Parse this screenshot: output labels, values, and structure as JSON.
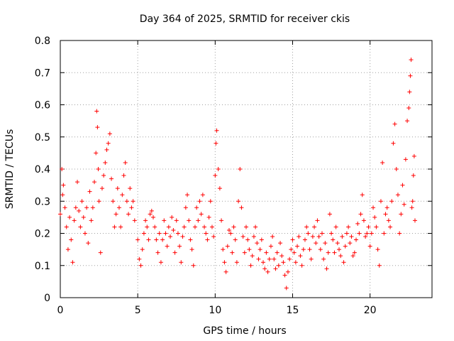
{
  "chart_data": {
    "type": "scatter",
    "title": "Day 364 of 2025, SRMTID for receiver ckis",
    "xlabel": "GPS time / hours",
    "ylabel": "SRMTID / TECUs",
    "xlim": [
      0,
      24
    ],
    "ylim": [
      0,
      0.8
    ],
    "x_ticks": [
      0,
      5,
      10,
      15,
      20
    ],
    "x_tick_labels": [
      "0",
      "5",
      "10",
      "15",
      "20"
    ],
    "y_ticks": [
      0,
      0.1,
      0.2,
      0.3,
      0.4,
      0.5,
      0.6,
      0.7,
      0.8
    ],
    "y_tick_labels": [
      "0",
      "0.1",
      "0.2",
      "0.3",
      "0.4",
      "0.5",
      "0.6",
      "0.7",
      "0.8"
    ],
    "grid": true,
    "marker": "+",
    "color": "#ff0000",
    "series": [
      {
        "name": "SRMTID",
        "x": [
          0.0,
          0.1,
          0.15,
          0.2,
          0.3,
          0.4,
          0.5,
          0.6,
          0.7,
          0.8,
          0.9,
          1.0,
          1.1,
          1.2,
          1.3,
          1.4,
          1.5,
          1.6,
          1.7,
          1.8,
          1.9,
          2.0,
          2.1,
          2.2,
          2.3,
          2.35,
          2.4,
          2.45,
          2.5,
          2.6,
          2.7,
          2.8,
          2.9,
          3.0,
          3.1,
          3.2,
          3.3,
          3.4,
          3.5,
          3.6,
          3.7,
          3.8,
          3.9,
          4.0,
          4.1,
          4.2,
          4.3,
          4.4,
          4.5,
          4.6,
          4.7,
          4.8,
          5.0,
          5.1,
          5.2,
          5.3,
          5.4,
          5.5,
          5.6,
          5.7,
          5.8,
          5.9,
          6.0,
          6.1,
          6.2,
          6.3,
          6.4,
          6.5,
          6.6,
          6.7,
          6.8,
          6.9,
          7.0,
          7.1,
          7.2,
          7.3,
          7.4,
          7.5,
          7.6,
          7.7,
          7.8,
          7.9,
          8.0,
          8.1,
          8.2,
          8.3,
          8.4,
          8.5,
          8.6,
          8.7,
          8.8,
          8.9,
          9.0,
          9.1,
          9.2,
          9.3,
          9.4,
          9.5,
          9.6,
          9.7,
          9.8,
          9.9,
          10.0,
          10.05,
          10.1,
          10.2,
          10.3,
          10.4,
          10.5,
          10.6,
          10.7,
          10.8,
          10.9,
          11.0,
          11.1,
          11.2,
          11.3,
          11.4,
          11.5,
          11.6,
          11.7,
          11.8,
          11.9,
          12.0,
          12.1,
          12.2,
          12.3,
          12.4,
          12.5,
          12.6,
          12.7,
          12.8,
          12.9,
          13.0,
          13.1,
          13.2,
          13.3,
          13.4,
          13.5,
          13.6,
          13.7,
          13.8,
          13.9,
          14.0,
          14.1,
          14.2,
          14.3,
          14.4,
          14.5,
          14.6,
          14.7,
          14.8,
          14.9,
          15.0,
          15.1,
          15.2,
          15.3,
          15.4,
          15.5,
          15.6,
          15.7,
          15.8,
          15.9,
          16.0,
          16.1,
          16.2,
          16.3,
          16.4,
          16.5,
          16.6,
          16.7,
          16.8,
          16.9,
          17.0,
          17.1,
          17.2,
          17.3,
          17.4,
          17.5,
          17.6,
          17.7,
          17.8,
          17.9,
          18.0,
          18.1,
          18.2,
          18.3,
          18.4,
          18.5,
          18.6,
          18.7,
          18.8,
          18.9,
          19.0,
          19.1,
          19.2,
          19.3,
          19.4,
          19.5,
          19.6,
          19.7,
          19.8,
          19.9,
          20.0,
          20.1,
          20.2,
          20.3,
          20.4,
          20.5,
          20.6,
          20.7,
          20.8,
          20.9,
          21.0,
          21.1,
          21.2,
          21.3,
          21.4,
          21.5,
          21.6,
          21.7,
          21.8,
          21.9,
          22.0,
          22.1,
          22.2,
          22.3,
          22.4,
          22.5,
          22.55,
          22.6,
          22.65,
          22.7,
          22.75,
          22.8,
          22.85,
          22.9
        ],
        "y": [
          0.26,
          0.4,
          0.32,
          0.35,
          0.28,
          0.22,
          0.15,
          0.25,
          0.18,
          0.11,
          0.24,
          0.28,
          0.36,
          0.27,
          0.22,
          0.3,
          0.25,
          0.2,
          0.28,
          0.17,
          0.33,
          0.24,
          0.28,
          0.36,
          0.45,
          0.58,
          0.53,
          0.4,
          0.3,
          0.14,
          0.34,
          0.38,
          0.42,
          0.46,
          0.48,
          0.51,
          0.37,
          0.3,
          0.22,
          0.26,
          0.34,
          0.28,
          0.22,
          0.32,
          0.38,
          0.42,
          0.3,
          0.26,
          0.34,
          0.28,
          0.3,
          0.24,
          0.18,
          0.12,
          0.1,
          0.15,
          0.2,
          0.24,
          0.22,
          0.18,
          0.26,
          0.27,
          0.25,
          0.22,
          0.18,
          0.14,
          0.2,
          0.11,
          0.18,
          0.24,
          0.2,
          0.16,
          0.22,
          0.19,
          0.25,
          0.21,
          0.14,
          0.24,
          0.2,
          0.16,
          0.11,
          0.19,
          0.22,
          0.28,
          0.32,
          0.24,
          0.18,
          0.15,
          0.1,
          0.22,
          0.28,
          0.24,
          0.3,
          0.26,
          0.32,
          0.22,
          0.2,
          0.18,
          0.25,
          0.3,
          0.22,
          0.19,
          0.38,
          0.48,
          0.52,
          0.4,
          0.34,
          0.24,
          0.15,
          0.11,
          0.08,
          0.16,
          0.21,
          0.2,
          0.14,
          0.22,
          0.18,
          0.11,
          0.3,
          0.4,
          0.28,
          0.19,
          0.14,
          0.22,
          0.18,
          0.15,
          0.1,
          0.13,
          0.19,
          0.22,
          0.17,
          0.12,
          0.15,
          0.18,
          0.11,
          0.09,
          0.14,
          0.08,
          0.12,
          0.16,
          0.19,
          0.12,
          0.09,
          0.14,
          0.1,
          0.17,
          0.13,
          0.11,
          0.07,
          0.03,
          0.08,
          0.12,
          0.15,
          0.18,
          0.14,
          0.11,
          0.16,
          0.19,
          0.13,
          0.1,
          0.15,
          0.18,
          0.22,
          0.2,
          0.15,
          0.12,
          0.19,
          0.22,
          0.17,
          0.24,
          0.19,
          0.15,
          0.2,
          0.12,
          0.17,
          0.09,
          0.14,
          0.26,
          0.2,
          0.18,
          0.14,
          0.22,
          0.17,
          0.15,
          0.13,
          0.19,
          0.11,
          0.16,
          0.2,
          0.22,
          0.17,
          0.19,
          0.13,
          0.14,
          0.18,
          0.23,
          0.2,
          0.26,
          0.32,
          0.24,
          0.19,
          0.2,
          0.22,
          0.16,
          0.2,
          0.28,
          0.25,
          0.22,
          0.15,
          0.1,
          0.3,
          0.42,
          0.2,
          0.26,
          0.28,
          0.24,
          0.22,
          0.3,
          0.48,
          0.54,
          0.4,
          0.32,
          0.2,
          0.26,
          0.35,
          0.29,
          0.43,
          0.55,
          0.59,
          0.64,
          0.69,
          0.74,
          0.28,
          0.3,
          0.38,
          0.44,
          0.24
        ]
      }
    ]
  }
}
